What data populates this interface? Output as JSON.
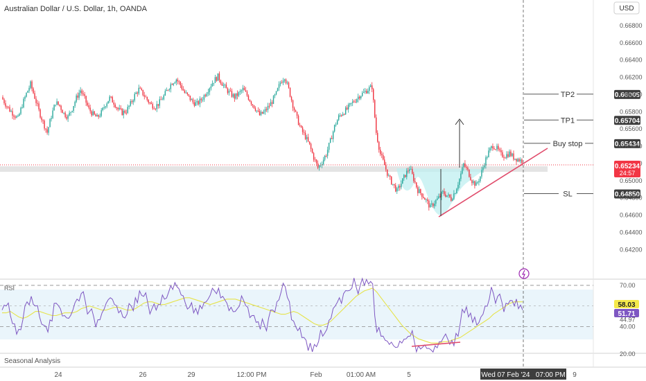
{
  "header": {
    "title": "Australian Dollar / U.S. Dollar, 1h, OANDA",
    "currency": "USD"
  },
  "indicator": {
    "rsi_label": "RSI",
    "seasonal_label": "Seasonal Analysis"
  },
  "colors": {
    "up": "#26a69a",
    "down": "#ef3340",
    "rsi": "#7e57c2",
    "rsi_ma": "#e6e34a",
    "level_line": "#555555",
    "triangle": "#e04a6a",
    "shade": "#bfeff0",
    "current_price_bg": "#f23645",
    "rsi_badge": "#f5e94b",
    "label_bg": "#3d3d3d"
  },
  "chart_data": [
    {
      "type": "candlestick",
      "title": "Australian Dollar / U.S. Dollar, 1h, OANDA",
      "currency": "USD",
      "ylim": [
        0.6405,
        0.6688
      ],
      "y_ticks": [
        "0.66800",
        "0.66600",
        "0.66400",
        "0.66200",
        "0.66000",
        "0.65800",
        "0.65600",
        "0.65400",
        "0.65200",
        "0.65000",
        "0.64800",
        "0.64600",
        "0.64400",
        "0.64200"
      ],
      "x_ticks": [
        "24",
        "26",
        "29",
        "12:00 PM",
        "Feb",
        "01:00 AM",
        "5",
        "9"
      ],
      "crosshair_time": "Wed 07 Feb '24   07:00 PM",
      "current_price": "0.65234",
      "countdown": "24:57",
      "levels": [
        {
          "name": "TP2",
          "value": "0.66005"
        },
        {
          "name": "TP1",
          "value": "0.65704"
        },
        {
          "name": "Buy stop",
          "value": "0.65434"
        },
        {
          "name": "SL",
          "value": "0.64850"
        }
      ],
      "price_path": [
        0.6597,
        0.6589,
        0.6582,
        0.6577,
        0.6572,
        0.6588,
        0.6601,
        0.6612,
        0.6597,
        0.6581,
        0.6568,
        0.6556,
        0.6575,
        0.6591,
        0.6587,
        0.6578,
        0.6574,
        0.6584,
        0.6596,
        0.6605,
        0.6595,
        0.6583,
        0.6577,
        0.6573,
        0.6579,
        0.6589,
        0.6596,
        0.6591,
        0.6583,
        0.6579,
        0.6581,
        0.6589,
        0.6599,
        0.6606,
        0.6601,
        0.6594,
        0.6588,
        0.6586,
        0.6591,
        0.6598,
        0.6607,
        0.6614,
        0.6618,
        0.6611,
        0.6602,
        0.6597,
        0.6591,
        0.6589,
        0.6594,
        0.6601,
        0.6609,
        0.6616,
        0.6621,
        0.6613,
        0.6606,
        0.6601,
        0.6597,
        0.6601,
        0.6606,
        0.6599,
        0.6591,
        0.6584,
        0.6576,
        0.6579,
        0.6585,
        0.6592,
        0.6601,
        0.6614,
        0.6621,
        0.6606,
        0.6588,
        0.6572,
        0.6559,
        0.6551,
        0.6541,
        0.6527,
        0.6515,
        0.6522,
        0.6531,
        0.6546,
        0.6563,
        0.6574,
        0.6579,
        0.6583,
        0.6589,
        0.6594,
        0.6599,
        0.6602,
        0.6606,
        0.6609,
        0.6556,
        0.6531,
        0.6518,
        0.6504,
        0.6496,
        0.6488,
        0.6497,
        0.6507,
        0.6515,
        0.6502,
        0.6489,
        0.6484,
        0.6477,
        0.6469,
        0.6475,
        0.648,
        0.6486,
        0.6483,
        0.6479,
        0.6488,
        0.6502,
        0.6519,
        0.6511,
        0.65,
        0.6495,
        0.6505,
        0.6521,
        0.6533,
        0.6541,
        0.6537,
        0.653,
        0.6529,
        0.6532,
        0.6527,
        0.6525,
        0.6523
      ],
      "rsi": {
        "label": "RSI",
        "ylim": [
          18,
          74
        ],
        "levels": [
          "70.00",
          "40.00",
          "20.00"
        ],
        "tick": "44.97",
        "rsi_value": "51.71",
        "ma_value": "58.03",
        "series": [
          52,
          55,
          48,
          42,
          38,
          45,
          58,
          62,
          55,
          47,
          41,
          36,
          44,
          57,
          53,
          48,
          46,
          52,
          60,
          64,
          58,
          51,
          47,
          45,
          50,
          57,
          61,
          56,
          50,
          47,
          49,
          55,
          61,
          66,
          62,
          57,
          53,
          52,
          56,
          60,
          65,
          67,
          69,
          63,
          57,
          54,
          50,
          49,
          53,
          58,
          63,
          66,
          68,
          62,
          57,
          54,
          51,
          55,
          59,
          54,
          48,
          43,
          38,
          41,
          46,
          52,
          58,
          65,
          69,
          58,
          44,
          37,
          32,
          30,
          28,
          27,
          29,
          33,
          38,
          46,
          55,
          61,
          64,
          66,
          68,
          69,
          70,
          70,
          71,
          71,
          36,
          33,
          30,
          27,
          26,
          25,
          28,
          31,
          33,
          29,
          26,
          25,
          24,
          23,
          26,
          29,
          32,
          31,
          30,
          35,
          42,
          50,
          47,
          43,
          41,
          47,
          55,
          60,
          64,
          62,
          58,
          57,
          59,
          55,
          53,
          52
        ],
        "ma": [
          50,
          50,
          51,
          49,
          47,
          46,
          47,
          49,
          51,
          51,
          50,
          49,
          48,
          48,
          49,
          50,
          50,
          50,
          51,
          53,
          54,
          55,
          54,
          53,
          52,
          52,
          53,
          54,
          54,
          53,
          52,
          52,
          53,
          55,
          57,
          58,
          58,
          57,
          56,
          56,
          57,
          58,
          59,
          60,
          61,
          61,
          60,
          59,
          58,
          57,
          56,
          57,
          58,
          59,
          60,
          60,
          60,
          59,
          58,
          57,
          56,
          55,
          54,
          53,
          52,
          51,
          50,
          49,
          49,
          50,
          51,
          50,
          48,
          46,
          44,
          42,
          41,
          41,
          42,
          44,
          47,
          50,
          53,
          56,
          59,
          62,
          64,
          66,
          67,
          68,
          65,
          61,
          57,
          53,
          49,
          45,
          41,
          38,
          35,
          33,
          31,
          30,
          29,
          28,
          28,
          28,
          29,
          29,
          30,
          31,
          32,
          34,
          36,
          38,
          40,
          42,
          44,
          46,
          49,
          51,
          53,
          55,
          57,
          58,
          58,
          58
        ]
      }
    }
  ]
}
